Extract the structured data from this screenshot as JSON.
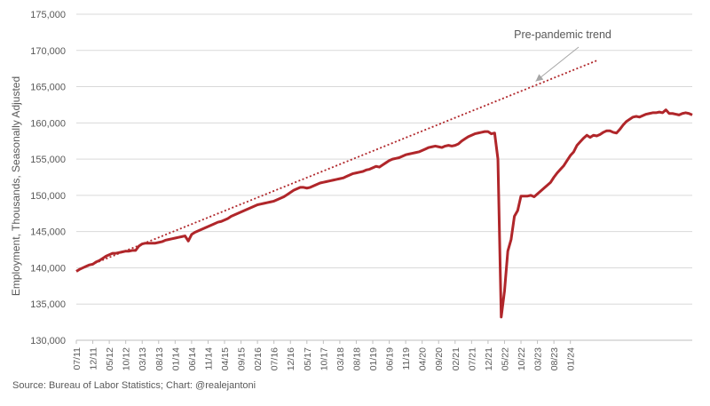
{
  "chart_data": {
    "type": "line",
    "title": "",
    "xlabel": "",
    "ylabel": "Employment, Thousands, Seasonally Adjusted",
    "ylim": [
      130000,
      175000
    ],
    "yticks": [
      "130,000",
      "135,000",
      "140,000",
      "145,000",
      "150,000",
      "155,000",
      "160,000",
      "165,000",
      "170,000",
      "175,000"
    ],
    "xticks": [
      "07/11",
      "12/11",
      "05/12",
      "10/12",
      "03/13",
      "08/13",
      "01/14",
      "06/14",
      "11/14",
      "04/15",
      "09/15",
      "02/16",
      "07/16",
      "12/16",
      "05/17",
      "10/17",
      "03/18",
      "08/18",
      "01/19",
      "06/19",
      "11/19",
      "04/20",
      "09/20",
      "02/21",
      "07/21",
      "12/21",
      "05/22",
      "10/22",
      "03/23",
      "08/23",
      "01/24"
    ],
    "grid": "horizontal",
    "x_start": "2011-07",
    "series": [
      {
        "name": "",
        "color": "#b0262a",
        "style": "solid",
        "values": [
          139500,
          139800,
          140000,
          140200,
          140400,
          140500,
          140800,
          141000,
          141300,
          141600,
          141800,
          142000,
          142000,
          142100,
          142200,
          142300,
          142300,
          142400,
          142400,
          143000,
          143300,
          143400,
          143400,
          143400,
          143400,
          143500,
          143600,
          143800,
          143900,
          144000,
          144100,
          144200,
          144300,
          144400,
          143700,
          144600,
          144900,
          145100,
          145300,
          145500,
          145700,
          145900,
          146100,
          146300,
          146400,
          146600,
          146800,
          147100,
          147300,
          147500,
          147700,
          147900,
          148100,
          148300,
          148500,
          148700,
          148800,
          148900,
          149000,
          149100,
          149200,
          149400,
          149600,
          149800,
          150100,
          150400,
          150700,
          150900,
          151100,
          151100,
          151000,
          151100,
          151300,
          151500,
          151700,
          151800,
          151900,
          152000,
          152100,
          152200,
          152300,
          152400,
          152600,
          152800,
          153000,
          153100,
          153200,
          153300,
          153500,
          153600,
          153800,
          154000,
          153900,
          154200,
          154500,
          154800,
          155000,
          155100,
          155200,
          155400,
          155600,
          155700,
          155800,
          155900,
          156000,
          156200,
          156400,
          156600,
          156700,
          156800,
          156700,
          156600,
          156800,
          156900,
          156800,
          156900,
          157100,
          157500,
          157800,
          158100,
          158300,
          158500,
          158600,
          158700,
          158800,
          158800,
          158500,
          158600,
          155000,
          133200,
          136800,
          142300,
          143900,
          147100,
          147900,
          149900,
          149900,
          149900,
          150000,
          149800,
          150200,
          150600,
          151000,
          151400,
          151800,
          152500,
          153100,
          153600,
          154100,
          154800,
          155500,
          156000,
          156900,
          157400,
          157900,
          158300,
          158000,
          158300,
          158200,
          158400,
          158700,
          158900,
          158900,
          158700,
          158600,
          159100,
          159700,
          160200,
          160500,
          160800,
          160900,
          160800,
          161000,
          161200,
          161300,
          161400,
          161400,
          161500,
          161400,
          161800,
          161300,
          161300,
          161200,
          161100,
          161300,
          161400,
          161300,
          161100
        ]
      },
      {
        "name": "Pre-pandemic trend",
        "color": "#b0262a",
        "style": "dotted",
        "start": [
          0,
          139600
        ],
        "end": [
          158,
          168600
        ]
      }
    ],
    "annotations": [
      {
        "text": "Pre-pandemic trend",
        "target_index": 140,
        "target_value": 165500
      }
    ]
  },
  "source": "Source: Bureau of Labor Statistics; Chart: @realejantoni"
}
